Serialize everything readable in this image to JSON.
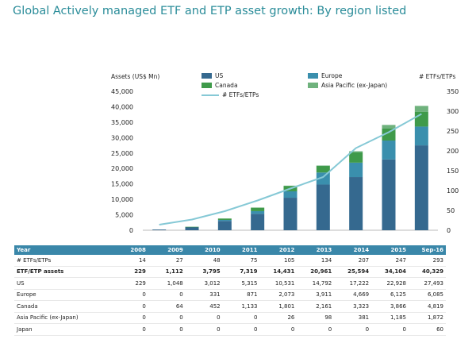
{
  "title": "Global Actively managed ETF and ETP asset growth: By region listed",
  "chart_data": {
    "type": "bar",
    "stacked": true,
    "ylabel": "Assets (US$ Mn)",
    "y2label": "# ETFs/ETPs",
    "ylim": [
      0,
      45000
    ],
    "y2lim": [
      0,
      350
    ],
    "yticks": [
      "0",
      "5,000",
      "10,000",
      "15,000",
      "20,000",
      "25,000",
      "30,000",
      "35,000",
      "40,000",
      "45,000"
    ],
    "y2ticks": [
      "0",
      "50",
      "100",
      "150",
      "200",
      "250",
      "300",
      "350"
    ],
    "categories": [
      "2008",
      "2009",
      "2010",
      "2011",
      "2012",
      "2013",
      "2014",
      "2015",
      "Sep-16"
    ],
    "series": [
      {
        "name": "US",
        "color": "#35698f",
        "values": [
          229,
          1048,
          3012,
          5315,
          10531,
          14792,
          17222,
          22928,
          27493
        ]
      },
      {
        "name": "Europe",
        "color": "#3a8fad",
        "values": [
          0,
          0,
          331,
          871,
          2073,
          3911,
          4669,
          6125,
          6085
        ]
      },
      {
        "name": "Canada",
        "color": "#3f9a4a",
        "values": [
          0,
          64,
          452,
          1133,
          1801,
          2161,
          3323,
          3866,
          4819
        ]
      },
      {
        "name": "Asia Pacific (ex-Japan)",
        "color": "#6fb27d",
        "values": [
          0,
          0,
          0,
          0,
          26,
          98,
          381,
          1185,
          1872
        ]
      }
    ],
    "line_series": {
      "name": "# ETFs/ETPs",
      "color": "#86c9d6",
      "axis": "right",
      "values": [
        14,
        27,
        48,
        75,
        105,
        134,
        207,
        247,
        293
      ]
    },
    "legend_position": "top",
    "grid": false
  },
  "table": {
    "header": [
      "Year",
      "2008",
      "2009",
      "2010",
      "2011",
      "2012",
      "2013",
      "2014",
      "2015",
      "Sep-16"
    ],
    "rows": [
      {
        "label": "# ETFs/ETPs",
        "bold": false,
        "values": [
          "14",
          "27",
          "48",
          "75",
          "105",
          "134",
          "207",
          "247",
          "293"
        ]
      },
      {
        "label": "ETF/ETP assets",
        "bold": true,
        "values": [
          "229",
          "1,112",
          "3,795",
          "7,319",
          "14,431",
          "20,961",
          "25,594",
          "34,104",
          "40,329"
        ]
      },
      {
        "label": "US",
        "bold": false,
        "values": [
          "229",
          "1,048",
          "3,012",
          "5,315",
          "10,531",
          "14,792",
          "17,222",
          "22,928",
          "27,493"
        ]
      },
      {
        "label": "Europe",
        "bold": false,
        "values": [
          "0",
          "0",
          "331",
          "871",
          "2,073",
          "3,911",
          "4,669",
          "6,125",
          "6,085"
        ]
      },
      {
        "label": "Canada",
        "bold": false,
        "values": [
          "0",
          "64",
          "452",
          "1,133",
          "1,801",
          "2,161",
          "3,323",
          "3,866",
          "4,819"
        ]
      },
      {
        "label": "Asia Pacific (ex-Japan)",
        "bold": false,
        "values": [
          "0",
          "0",
          "0",
          "0",
          "26",
          "98",
          "381",
          "1,185",
          "1,872"
        ]
      },
      {
        "label": "Japan",
        "bold": false,
        "values": [
          "0",
          "0",
          "0",
          "0",
          "0",
          "0",
          "0",
          "0",
          "60"
        ]
      }
    ]
  }
}
